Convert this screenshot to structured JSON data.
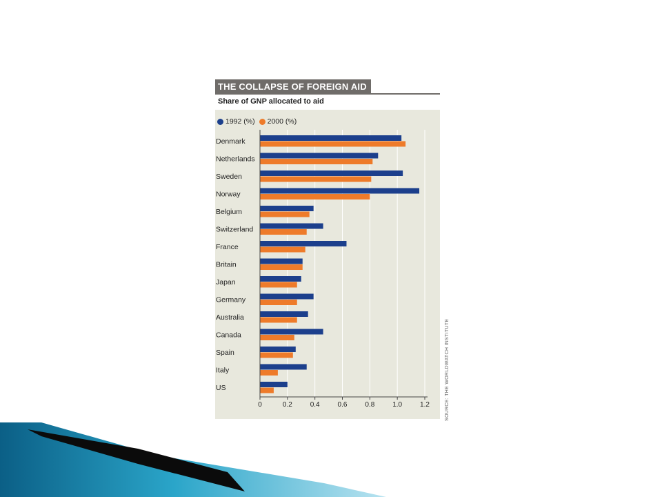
{
  "colors": {
    "series_1992": "#1c3f8c",
    "series_2000": "#ee7b2a",
    "plot_background": "#e8e8dd",
    "title_background": "#6f6c69",
    "slide_accent": "#2aa5c9"
  },
  "source_note": "SOURCE: THE WORLDWATCH INSTITUTE",
  "chart_data": {
    "type": "bar",
    "orientation": "horizontal",
    "title": "THE COLLAPSE OF FOREIGN AID",
    "subtitle": "Share of GNP allocated to aid",
    "categories": [
      "Denmark",
      "Netherlands",
      "Sweden",
      "Norway",
      "Belgium",
      "Switzerland",
      "France",
      "Britain",
      "Japan",
      "Germany",
      "Australia",
      "Canada",
      "Spain",
      "Italy",
      "US"
    ],
    "series": [
      {
        "name": "1992 (%)",
        "values": [
          1.03,
          0.86,
          1.04,
          1.16,
          0.39,
          0.46,
          0.63,
          0.31,
          0.3,
          0.39,
          0.35,
          0.46,
          0.26,
          0.34,
          0.2
        ]
      },
      {
        "name": "2000 (%)",
        "values": [
          1.06,
          0.82,
          0.81,
          0.8,
          0.36,
          0.34,
          0.33,
          0.31,
          0.27,
          0.27,
          0.27,
          0.25,
          0.24,
          0.13,
          0.1
        ]
      }
    ],
    "xticks": [
      "0",
      "0.2",
      "0.4",
      "0.6",
      "0.8",
      "1.0",
      "1.2"
    ],
    "xlim": [
      0,
      1.2
    ],
    "grid": true,
    "legend_position": "top-left"
  }
}
